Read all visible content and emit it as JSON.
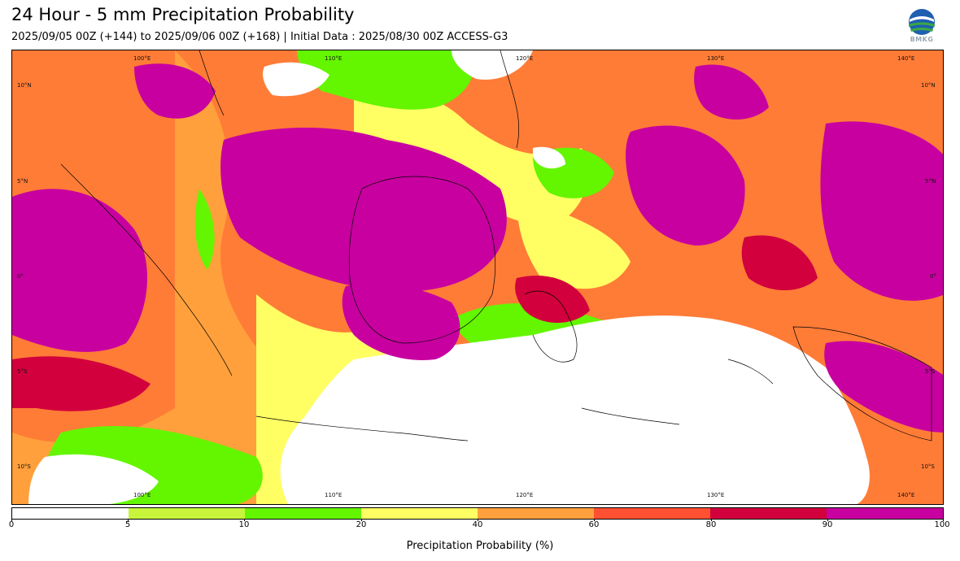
{
  "title": "24 Hour - 5 mm Precipitation Probability",
  "subtitle": "2025/09/05 00Z (+144) to 2025/09/06 00Z (+168) | Initial Data : 2025/08/30 00Z ACCESS-G3",
  "logo": {
    "icon": "bmkg-logo-icon",
    "text": "BMKG"
  },
  "map": {
    "lon_top": [
      "100°E",
      "110°E",
      "120°E",
      "130°E",
      "140°E"
    ],
    "lon_bottom": [
      "100°E",
      "110°E",
      "120°E",
      "130°E",
      "140°E"
    ],
    "lat_left": [
      "10°N",
      "5°N",
      "0°",
      "5°S",
      "10°S"
    ],
    "lat_right": [
      "10°N",
      "5°N",
      "0°",
      "5°S",
      "10°S"
    ]
  },
  "colorbar": {
    "label": "Precipitation Probability (%)",
    "ticks": [
      "0",
      "5",
      "10",
      "20",
      "40",
      "60",
      "80",
      "90",
      "100"
    ],
    "colors": [
      "#ffffff",
      "#c8f53c",
      "#64f500",
      "#ffff64",
      "#ffa03c",
      "#ff5032",
      "#d2003c",
      "#c800a0"
    ]
  }
}
